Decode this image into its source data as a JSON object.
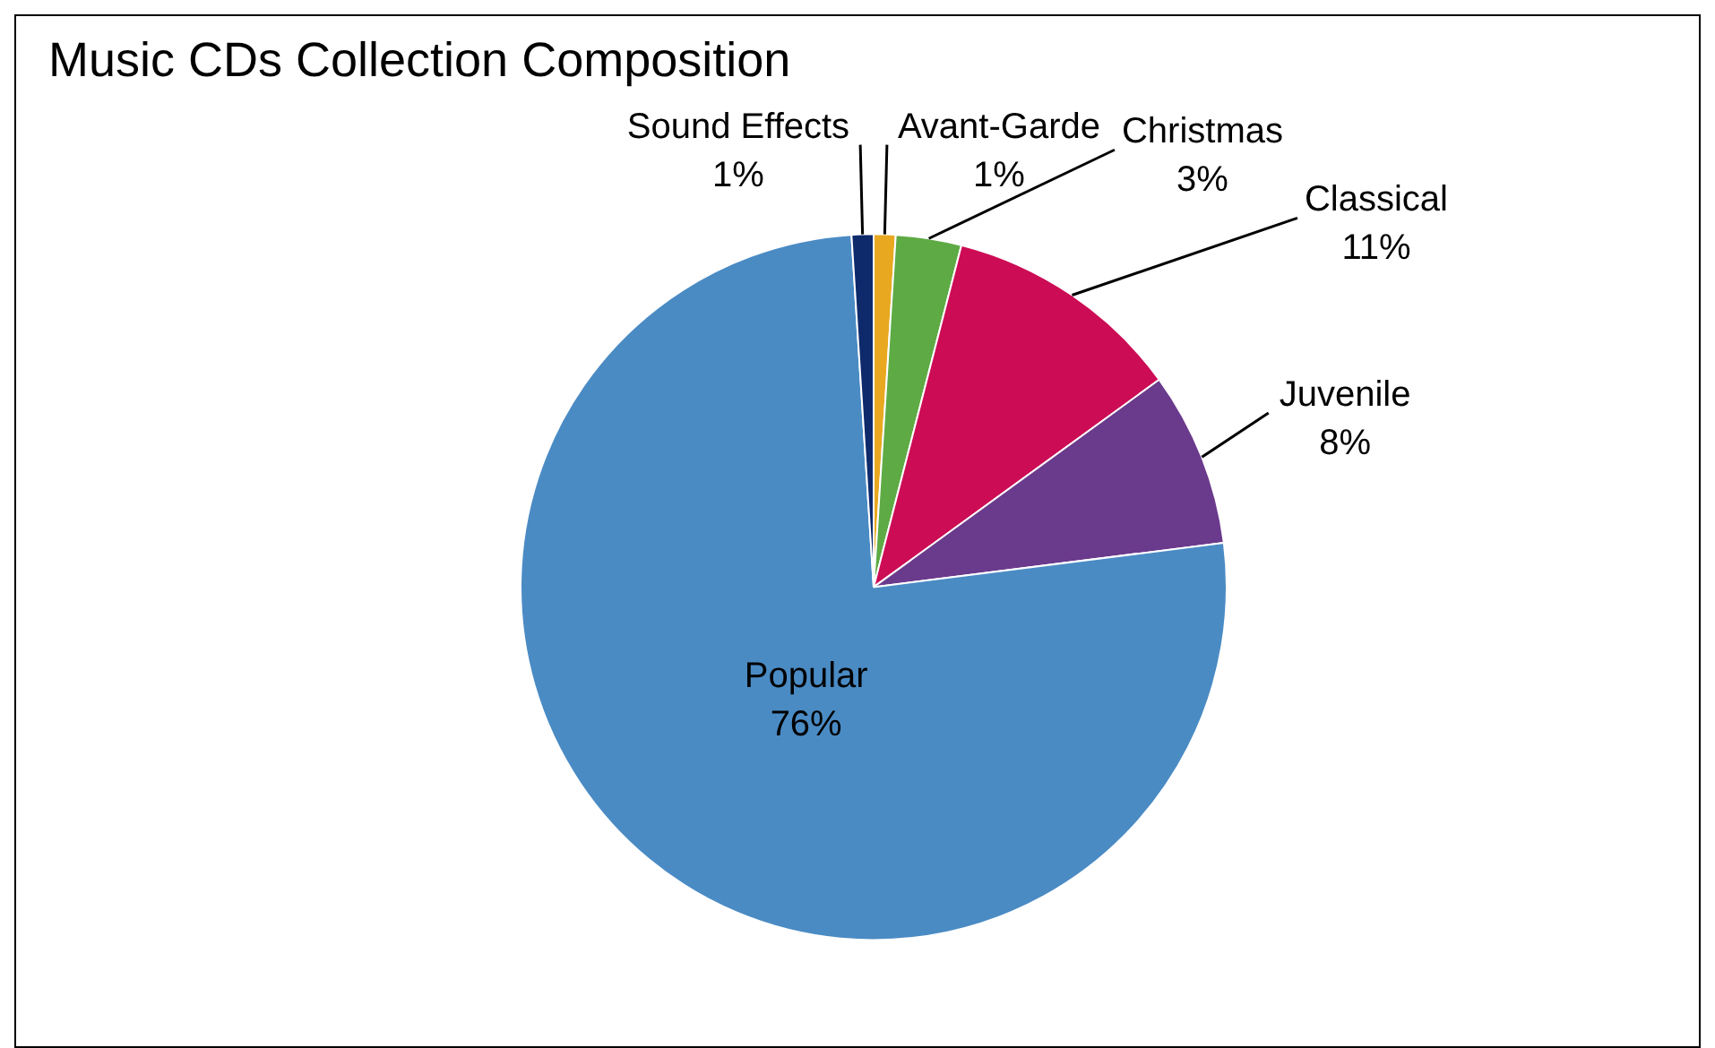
{
  "chart_data": {
    "type": "pie",
    "title": "Music CDs Collection Composition",
    "categories": [
      "Avant-Garde",
      "Christmas",
      "Classical",
      "Juvenile",
      "Popular",
      "Sound Effects"
    ],
    "values": [
      1,
      3,
      11,
      8,
      76,
      1
    ],
    "colors": [
      "#e8a820",
      "#5eaa44",
      "#cc0c55",
      "#6a3a8c",
      "#4a8bc4",
      "#0e2a6b"
    ],
    "value_labels": [
      "1%",
      "3%",
      "11%",
      "8%",
      "76%",
      "1%"
    ],
    "legend": false
  }
}
